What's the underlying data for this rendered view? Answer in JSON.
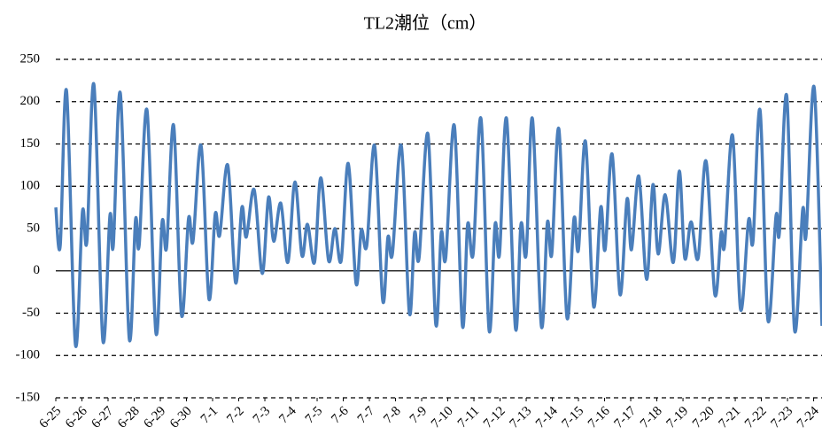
{
  "chart_data": {
    "type": "line",
    "title": "TL2潮位（cm）",
    "x": [
      0,
      0.17,
      0.41,
      0.75,
      1.02,
      1.19,
      1.46,
      1.8,
      2.07,
      2.2,
      2.47,
      2.81,
      3.05,
      3.19,
      3.49,
      3.83,
      4.07,
      4.24,
      4.51,
      4.81,
      5.08,
      5.25,
      5.56,
      5.86,
      6.1,
      6.27,
      6.58,
      6.88,
      7.12,
      7.29,
      7.59,
      7.9,
      8.14,
      8.34,
      8.61,
      8.88,
      9.15,
      9.42,
      9.63,
      9.9,
      10.14,
      10.44,
      10.68,
      10.92,
      11.19,
      11.49,
      11.69,
      11.9,
      12.2,
      12.51,
      12.71,
      12.88,
      13.22,
      13.53,
      13.73,
      13.9,
      14.24,
      14.54,
      14.75,
      14.92,
      15.25,
      15.56,
      15.76,
      15.97,
      16.27,
      16.58,
      16.81,
      16.98,
      17.25,
      17.59,
      17.8,
      18.0,
      18.24,
      18.58,
      18.81,
      18.98,
      19.25,
      19.56,
      19.83,
      20.0,
      20.27,
      20.58,
      20.85,
      21.02,
      21.29,
      21.59,
      21.86,
      22.03,
      22.31,
      22.61,
      22.85,
      23.05,
      23.32,
      23.63,
      23.86,
      24.07,
      24.31,
      24.58,
      24.88,
      25.22,
      25.46,
      25.59,
      25.9,
      26.2,
      26.51,
      26.68,
      26.95,
      27.25,
      27.56,
      27.69,
      27.97,
      28.27,
      28.58,
      28.71,
      29.02,
      29.32
    ],
    "series": [
      {
        "color": "#4a7ebb",
        "values": [
          75,
          30,
          213,
          -87,
          70,
          35,
          220,
          -82,
          65,
          30,
          210,
          -80,
          60,
          30,
          190,
          -73,
          58,
          28,
          172,
          -52,
          62,
          35,
          148,
          -33,
          67,
          42,
          125,
          -14,
          75,
          40,
          96,
          -3,
          87,
          35,
          80,
          10,
          105,
          18,
          55,
          10,
          110,
          12,
          50,
          12,
          127,
          -15,
          48,
          30,
          148,
          -35,
          40,
          20,
          148,
          -50,
          45,
          15,
          162,
          -63,
          45,
          15,
          172,
          -65,
          55,
          20,
          180,
          -70,
          55,
          20,
          180,
          -68,
          55,
          20,
          180,
          -65,
          57,
          20,
          168,
          -55,
          62,
          25,
          153,
          -42,
          75,
          25,
          138,
          -28,
          85,
          25,
          112,
          -10,
          102,
          20,
          90,
          10,
          118,
          15,
          58,
          15,
          130,
          -28,
          45,
          30,
          160,
          -45,
          60,
          35,
          190,
          -58,
          65,
          45,
          207,
          -70,
          72,
          42,
          217,
          -65
        ]
      }
    ],
    "xlim": [
      0,
      29.32
    ],
    "xticks": [
      {
        "value": 0,
        "label": "6-25"
      },
      {
        "value": 1,
        "label": "6-26"
      },
      {
        "value": 2,
        "label": "6-27"
      },
      {
        "value": 3,
        "label": "6-28"
      },
      {
        "value": 4,
        "label": "6-29"
      },
      {
        "value": 5,
        "label": "6-30"
      },
      {
        "value": 6,
        "label": "7-1"
      },
      {
        "value": 7,
        "label": "7-2"
      },
      {
        "value": 8,
        "label": "7-3"
      },
      {
        "value": 9,
        "label": "7-4"
      },
      {
        "value": 10,
        "label": "7-5"
      },
      {
        "value": 11,
        "label": "7-6"
      },
      {
        "value": 12,
        "label": "7-7"
      },
      {
        "value": 13,
        "label": "7-8"
      },
      {
        "value": 14,
        "label": "7-9"
      },
      {
        "value": 15,
        "label": "7-10"
      },
      {
        "value": 16,
        "label": "7-11"
      },
      {
        "value": 17,
        "label": "7-12"
      },
      {
        "value": 18,
        "label": "7-13"
      },
      {
        "value": 19,
        "label": "7-14"
      },
      {
        "value": 20,
        "label": "7-15"
      },
      {
        "value": 21,
        "label": "7-16"
      },
      {
        "value": 22,
        "label": "7-17"
      },
      {
        "value": 23,
        "label": "7-18"
      },
      {
        "value": 24,
        "label": "7-19"
      },
      {
        "value": 25,
        "label": "7-20"
      },
      {
        "value": 26,
        "label": "7-21"
      },
      {
        "value": 27,
        "label": "7-22"
      },
      {
        "value": 28,
        "label": "7-23"
      },
      {
        "value": 29,
        "label": "7-24"
      }
    ],
    "ylim": [
      -150,
      250
    ],
    "yticks": [
      -150,
      -100,
      -50,
      0,
      50,
      100,
      150,
      200,
      250
    ],
    "grid": true
  }
}
